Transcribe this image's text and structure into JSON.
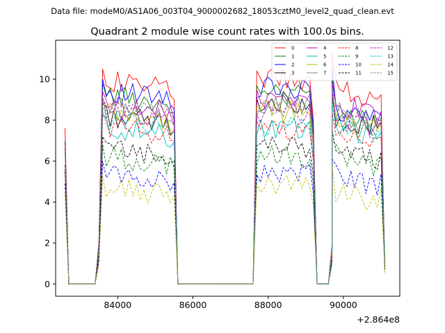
{
  "chart_data": {
    "type": "line",
    "suptitle": "Data file: modeM0/AS1A06_003T04_9000002682_18053cztM0_level2_quad_clean.evt",
    "title": "Quadrant 2 module wise count rates with 100.0s bins.",
    "xlabel": "",
    "ylabel": "",
    "x_offset_label": "+2.864e8",
    "xlim": [
      82350,
      91500
    ],
    "ylim": [
      -0.6,
      11.9
    ],
    "xticks": [
      84000,
      86000,
      88000,
      90000
    ],
    "yticks": [
      0,
      2,
      4,
      6,
      8,
      10
    ],
    "legend": "top-right",
    "segments": [
      {
        "x": [
          82600,
          82700,
          82800,
          82900,
          83000,
          83100,
          83200,
          83300,
          83400
        ],
        "zero_from": 1
      },
      {
        "x": [
          83400,
          83500,
          83600,
          83700,
          83800,
          83900,
          84000,
          84100,
          84200,
          84300,
          84400,
          84500,
          84600,
          84700,
          84800,
          84900,
          85000,
          85100,
          85200,
          85300,
          85400,
          85500,
          85600
        ]
      },
      {
        "x": [
          85600,
          85700,
          85800,
          85900,
          86000,
          86100,
          86200,
          86300,
          86400,
          86500,
          86600,
          86700,
          86800,
          86900,
          87000,
          87100,
          87200,
          87300,
          87400,
          87500,
          87600
        ]
      },
      {
        "x": [
          87600,
          87700,
          87800,
          87900,
          88000,
          88100,
          88200,
          88300,
          88400,
          88500,
          88600,
          88700,
          88800,
          88900,
          89000,
          89100,
          89200,
          89300
        ]
      },
      {
        "x": [
          89300,
          89400,
          89500,
          89600,
          89700
        ]
      },
      {
        "x": [
          89700,
          89800,
          89900,
          90000,
          90100,
          90200,
          90300,
          90400,
          90500,
          90600,
          90700,
          90800,
          90900,
          91000,
          91100
        ]
      }
    ],
    "series": [
      {
        "name": "0",
        "color": "#ff0000",
        "dash": false,
        "start": 7.6,
        "level1": 10.0,
        "level2": 10.0,
        "level3": 9.7,
        "peak3": 11.3,
        "end": 0.9
      },
      {
        "name": "1",
        "color": "#008000",
        "dash": false,
        "start": 7.0,
        "level1": 9.3,
        "level2": 9.3,
        "level3": 8.3,
        "peak3": 10.2,
        "end": 1.3
      },
      {
        "name": "2",
        "color": "#0000ff",
        "dash": false,
        "start": 6.9,
        "level1": 9.5,
        "level2": 9.6,
        "level3": 8.6,
        "peak3": 10.6,
        "end": 0.9
      },
      {
        "name": "3",
        "color": "#000000",
        "dash": false,
        "start": 6.7,
        "level1": 8.3,
        "level2": 8.9,
        "level3": 8.2,
        "peak3": 9.4,
        "end": 0.8
      },
      {
        "name": "4",
        "color": "#bf00bf",
        "dash": false,
        "start": 6.8,
        "level1": 8.9,
        "level2": 9.0,
        "level3": 8.8,
        "peak3": 9.8,
        "end": 0.9
      },
      {
        "name": "5",
        "color": "#00bfbf",
        "dash": false,
        "start": 6.6,
        "level1": 7.7,
        "level2": 7.6,
        "level3": 7.7,
        "peak3": 9.0,
        "end": 0.8
      },
      {
        "name": "6",
        "color": "#bfbf00",
        "dash": false,
        "start": 6.6,
        "level1": 8.4,
        "level2": 8.4,
        "level3": 8.1,
        "peak3": 9.3,
        "end": 0.8
      },
      {
        "name": "7",
        "color": "#808080",
        "dash": false,
        "start": 6.8,
        "level1": 8.6,
        "level2": 8.8,
        "level3": 8.4,
        "peak3": 9.6,
        "end": 0.9
      },
      {
        "name": "8",
        "color": "#ff0000",
        "dash": true,
        "start": 6.6,
        "level1": 7.8,
        "level2": 7.5,
        "level3": 7.4,
        "peak3": 8.4,
        "end": 0.8
      },
      {
        "name": "9",
        "color": "#008000",
        "dash": true,
        "start": 5.5,
        "level1": 6.3,
        "level2": 6.2,
        "level3": 6.3,
        "peak3": 7.0,
        "end": 0.7
      },
      {
        "name": "10",
        "color": "#0000ff",
        "dash": true,
        "start": 4.9,
        "level1": 5.5,
        "level2": 5.5,
        "level3": 5.4,
        "peak3": 6.1,
        "end": 0.6
      },
      {
        "name": "11",
        "color": "#000000",
        "dash": true,
        "start": 5.8,
        "level1": 6.7,
        "level2": 6.7,
        "level3": 6.6,
        "peak3": 7.5,
        "end": 0.7
      },
      {
        "name": "12",
        "color": "#bf00bf",
        "dash": true,
        "start": 6.9,
        "level1": 8.6,
        "level2": 8.4,
        "level3": 8.2,
        "peak3": 9.5,
        "end": 0.9
      },
      {
        "name": "13",
        "color": "#00bfbf",
        "dash": true,
        "start": 6.5,
        "level1": 8.2,
        "level2": 7.8,
        "level3": 7.8,
        "peak3": 8.8,
        "end": 0.8
      },
      {
        "name": "14",
        "color": "#bfbf00",
        "dash": true,
        "start": 4.4,
        "level1": 4.8,
        "level2": 4.8,
        "level3": 4.6,
        "peak3": 5.8,
        "end": 0.5
      },
      {
        "name": "15",
        "color": "#808080",
        "dash": true,
        "start": 6.7,
        "level1": 8.7,
        "level2": 8.6,
        "level3": 8.4,
        "peak3": 9.4,
        "end": 0.9
      }
    ]
  }
}
